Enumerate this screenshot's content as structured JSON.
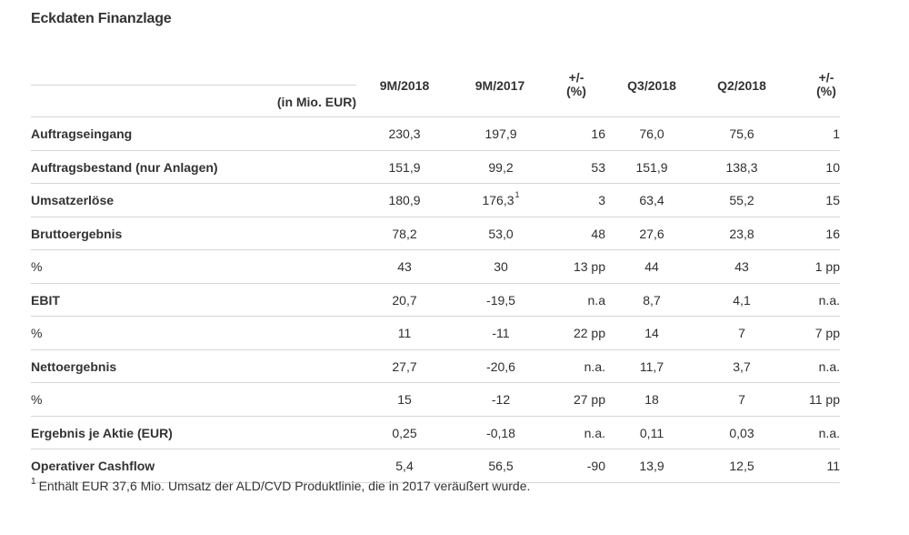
{
  "title": "Eckdaten Finanzlage",
  "unit_label": "(in Mio. EUR)",
  "columns": [
    "9M/2018",
    "9M/2017",
    "+/-",
    "(%)",
    "Q3/2018",
    "Q2/2018",
    "+/-",
    "(%)"
  ],
  "rows": [
    {
      "label": "Auftragseingang",
      "bold": true,
      "c1": "230,3",
      "c2": "197,9",
      "c3": "16",
      "c4": "76,0",
      "c5": "75,6",
      "c6": "1"
    },
    {
      "label": "Auftragsbestand (nur Anlagen)",
      "bold": true,
      "c1": "151,9",
      "c2": "99,2",
      "c3": "53",
      "c4": "151,9",
      "c5": "138,3",
      "c6": "10"
    },
    {
      "label": "Umsatzerlöse",
      "bold": true,
      "c1": "180,9",
      "c2": "176,3",
      "c2_sup": "1",
      "c3": "3",
      "c4": "63,4",
      "c5": "55,2",
      "c6": "15"
    },
    {
      "label": "Bruttoergebnis",
      "bold": true,
      "c1": "78,2",
      "c2": "53,0",
      "c3": "48",
      "c4": "27,6",
      "c5": "23,8",
      "c6": "16"
    },
    {
      "label": "%",
      "bold": false,
      "c1": "43",
      "c2": "30",
      "c3": "13 pp",
      "c4": "44",
      "c5": "43",
      "c6": "1 pp"
    },
    {
      "label": "EBIT",
      "bold": true,
      "c1": "20,7",
      "c2": "-19,5",
      "c3": "n.a",
      "c4": "8,7",
      "c5": "4,1",
      "c6": "n.a."
    },
    {
      "label": "%",
      "bold": false,
      "c1": "11",
      "c2": "-11",
      "c3": "22 pp",
      "c4": "14",
      "c5": "7",
      "c6": "7 pp"
    },
    {
      "label": "Nettoergebnis",
      "bold": true,
      "c1": "27,7",
      "c2": "-20,6",
      "c3": "n.a.",
      "c4": "11,7",
      "c5": "3,7",
      "c6": "n.a."
    },
    {
      "label": "%",
      "bold": false,
      "c1": "15",
      "c2": "-12",
      "c3": "27 pp",
      "c4": "18",
      "c5": "7",
      "c6": "11 pp"
    },
    {
      "label": "Ergebnis je Aktie (EUR)",
      "bold": true,
      "c1": "0,25",
      "c2": "-0,18",
      "c3": "n.a.",
      "c4": "0,11",
      "c5": "0,03",
      "c6": "n.a."
    },
    {
      "label": "Operativer Cashflow",
      "bold": true,
      "c1": "5,4",
      "c2": "56,5",
      "c3": "-90",
      "c4": "13,9",
      "c5": "12,5",
      "c6": "11"
    }
  ],
  "footnote": {
    "marker": "1",
    "text": "Enthält EUR 37,6 Mio. Umsatz der ALD/CVD Produktlinie, die in 2017 veräußert wurde."
  }
}
